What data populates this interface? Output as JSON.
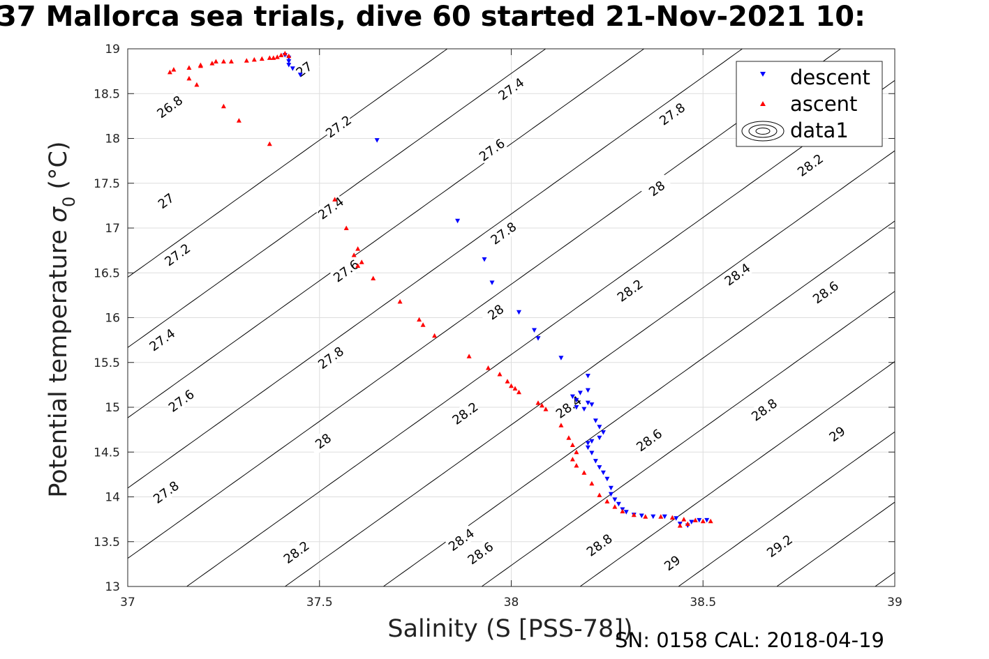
{
  "title": "37 Mallorca sea trials, dive 60 started 21-Nov-2021 10:",
  "footer_text": "SN: 0158  CAL: 2018-04-19",
  "chart_data": {
    "type": "scatter",
    "xlabel": "Salinity (S [PSS-78])",
    "ylabel": "Potential temperature",
    "ylabel_symbol": "σ",
    "ylabel_subscript": "0",
    "ylabel_unit": "(°C)",
    "xlim": [
      37,
      39
    ],
    "ylim": [
      13,
      19
    ],
    "x_ticks": [
      "37",
      "37.5",
      "38",
      "38.5",
      "39"
    ],
    "y_ticks": [
      "13",
      "13.5",
      "14",
      "14.5",
      "15",
      "15.5",
      "16",
      "16.5",
      "17",
      "17.5",
      "18",
      "18.5",
      "19"
    ],
    "grid": true,
    "legend_position": "top-right",
    "colors": {
      "descent": "#0000ff",
      "ascent": "#ff0000",
      "contour": "#000000",
      "grid": "#dddddd"
    },
    "legend": [
      "descent",
      "ascent",
      "data1"
    ],
    "isopycnals": {
      "levels": [
        26.8,
        27.0,
        27.2,
        27.4,
        27.6,
        27.8,
        28.0,
        28.2,
        28.4,
        28.6,
        28.8,
        29.0,
        29.2
      ],
      "labels": [
        {
          "text": "26.8",
          "s": 37.11,
          "t": 18.35
        },
        {
          "text": "27",
          "s": 37.1,
          "t": 17.3
        },
        {
          "text": "27",
          "s": 37.46,
          "t": 18.77
        },
        {
          "text": "27.2",
          "s": 37.13,
          "t": 16.7
        },
        {
          "text": "27.2",
          "s": 37.55,
          "t": 18.13
        },
        {
          "text": "27.4",
          "s": 37.09,
          "t": 15.75
        },
        {
          "text": "27.4",
          "s": 37.53,
          "t": 17.22
        },
        {
          "text": "27.4",
          "s": 38.0,
          "t": 18.55
        },
        {
          "text": "27.6",
          "s": 37.14,
          "t": 15.07
        },
        {
          "text": "27.6",
          "s": 37.57,
          "t": 16.52
        },
        {
          "text": "27.6",
          "s": 37.95,
          "t": 17.87
        },
        {
          "text": "27.8",
          "s": 37.1,
          "t": 14.05
        },
        {
          "text": "27.8",
          "s": 37.53,
          "t": 15.55
        },
        {
          "text": "27.8",
          "s": 37.98,
          "t": 16.94
        },
        {
          "text": "27.8",
          "s": 38.42,
          "t": 18.27
        },
        {
          "text": "28",
          "s": 37.51,
          "t": 14.62
        },
        {
          "text": "28",
          "s": 37.96,
          "t": 16.06
        },
        {
          "text": "28",
          "s": 38.38,
          "t": 17.44
        },
        {
          "text": "28.2",
          "s": 37.44,
          "t": 13.38
        },
        {
          "text": "28.2",
          "s": 37.88,
          "t": 14.93
        },
        {
          "text": "28.2",
          "s": 38.31,
          "t": 16.3
        },
        {
          "text": "28.2",
          "s": 38.78,
          "t": 17.7
        },
        {
          "text": "28.4",
          "s": 37.87,
          "t": 13.52
        },
        {
          "text": "28.4",
          "s": 38.15,
          "t": 15.0
        },
        {
          "text": "28.4",
          "s": 38.59,
          "t": 16.48
        },
        {
          "text": "28.6",
          "s": 37.92,
          "t": 13.37
        },
        {
          "text": "28.6",
          "s": 38.36,
          "t": 14.63
        },
        {
          "text": "28.6",
          "s": 38.82,
          "t": 16.28
        },
        {
          "text": "28.8",
          "s": 38.23,
          "t": 13.46
        },
        {
          "text": "28.8",
          "s": 38.66,
          "t": 14.97
        },
        {
          "text": "29",
          "s": 38.42,
          "t": 13.26
        },
        {
          "text": "29",
          "s": 38.85,
          "t": 14.7
        },
        {
          "text": "29.2",
          "s": 38.7,
          "t": 13.45
        }
      ]
    },
    "series": [
      {
        "name": "descent",
        "marker": "triangle-down",
        "points": [
          [
            37.41,
            18.93
          ],
          [
            37.42,
            18.9
          ],
          [
            37.42,
            18.86
          ],
          [
            37.42,
            18.82
          ],
          [
            37.43,
            18.78
          ],
          [
            37.45,
            18.71
          ],
          [
            37.65,
            17.98
          ],
          [
            37.86,
            17.08
          ],
          [
            37.93,
            16.65
          ],
          [
            37.95,
            16.39
          ],
          [
            38.02,
            16.06
          ],
          [
            38.06,
            15.86
          ],
          [
            38.07,
            15.77
          ],
          [
            38.13,
            15.55
          ],
          [
            38.2,
            15.35
          ],
          [
            38.2,
            15.19
          ],
          [
            38.18,
            15.16
          ],
          [
            38.16,
            15.12
          ],
          [
            38.17,
            15.08
          ],
          [
            38.2,
            15.05
          ],
          [
            38.21,
            15.03
          ],
          [
            38.17,
            15.0
          ],
          [
            38.19,
            14.98
          ],
          [
            38.22,
            14.85
          ],
          [
            38.23,
            14.78
          ],
          [
            38.24,
            14.72
          ],
          [
            38.23,
            14.66
          ],
          [
            38.21,
            14.62
          ],
          [
            38.2,
            14.6
          ],
          [
            38.2,
            14.55
          ],
          [
            38.21,
            14.49
          ],
          [
            38.22,
            14.4
          ],
          [
            38.23,
            14.33
          ],
          [
            38.24,
            14.27
          ],
          [
            38.25,
            14.2
          ],
          [
            38.26,
            14.1
          ],
          [
            38.26,
            14.03
          ],
          [
            38.27,
            13.97
          ],
          [
            38.28,
            13.92
          ],
          [
            38.29,
            13.86
          ],
          [
            38.3,
            13.83
          ],
          [
            38.32,
            13.8
          ],
          [
            38.34,
            13.79
          ],
          [
            38.37,
            13.78
          ],
          [
            38.4,
            13.78
          ],
          [
            38.43,
            13.76
          ],
          [
            38.44,
            13.7
          ],
          [
            38.46,
            13.68
          ],
          [
            38.47,
            13.72
          ],
          [
            38.49,
            13.74
          ],
          [
            38.51,
            13.74
          ]
        ]
      },
      {
        "name": "ascent",
        "marker": "triangle-up",
        "points": [
          [
            37.11,
            18.74
          ],
          [
            37.12,
            18.77
          ],
          [
            37.16,
            18.79
          ],
          [
            37.16,
            18.67
          ],
          [
            37.18,
            18.6
          ],
          [
            37.19,
            18.81
          ],
          [
            37.19,
            18.82
          ],
          [
            37.22,
            18.84
          ],
          [
            37.23,
            18.86
          ],
          [
            37.25,
            18.86
          ],
          [
            37.27,
            18.86
          ],
          [
            37.25,
            18.36
          ],
          [
            37.29,
            18.2
          ],
          [
            37.37,
            17.94
          ],
          [
            37.31,
            18.87
          ],
          [
            37.33,
            18.88
          ],
          [
            37.35,
            18.89
          ],
          [
            37.37,
            18.9
          ],
          [
            37.38,
            18.9
          ],
          [
            37.39,
            18.91
          ],
          [
            37.4,
            18.93
          ],
          [
            37.41,
            18.95
          ],
          [
            37.42,
            18.92
          ],
          [
            37.54,
            17.32
          ],
          [
            37.57,
            17.0
          ],
          [
            37.6,
            16.77
          ],
          [
            37.59,
            16.7
          ],
          [
            37.61,
            16.62
          ],
          [
            37.6,
            16.58
          ],
          [
            37.64,
            16.44
          ],
          [
            37.71,
            16.18
          ],
          [
            37.76,
            15.98
          ],
          [
            37.77,
            15.92
          ],
          [
            37.8,
            15.8
          ],
          [
            37.89,
            15.57
          ],
          [
            37.94,
            15.44
          ],
          [
            37.97,
            15.37
          ],
          [
            37.99,
            15.29
          ],
          [
            38.0,
            15.24
          ],
          [
            38.01,
            15.21
          ],
          [
            38.02,
            15.17
          ],
          [
            38.07,
            15.05
          ],
          [
            38.08,
            15.02
          ],
          [
            38.09,
            14.98
          ],
          [
            38.13,
            14.8
          ],
          [
            38.15,
            14.66
          ],
          [
            38.16,
            14.58
          ],
          [
            38.17,
            14.5
          ],
          [
            38.16,
            14.42
          ],
          [
            38.17,
            14.35
          ],
          [
            38.19,
            14.27
          ],
          [
            38.21,
            14.15
          ],
          [
            38.23,
            14.02
          ],
          [
            38.25,
            13.95
          ],
          [
            38.27,
            13.89
          ],
          [
            38.29,
            13.84
          ],
          [
            38.32,
            13.8
          ],
          [
            38.35,
            13.78
          ],
          [
            38.39,
            13.78
          ],
          [
            38.42,
            13.77
          ],
          [
            38.45,
            13.75
          ],
          [
            38.44,
            13.68
          ],
          [
            38.46,
            13.7
          ],
          [
            38.48,
            13.74
          ],
          [
            38.5,
            13.73
          ],
          [
            38.52,
            13.73
          ]
        ]
      }
    ]
  }
}
